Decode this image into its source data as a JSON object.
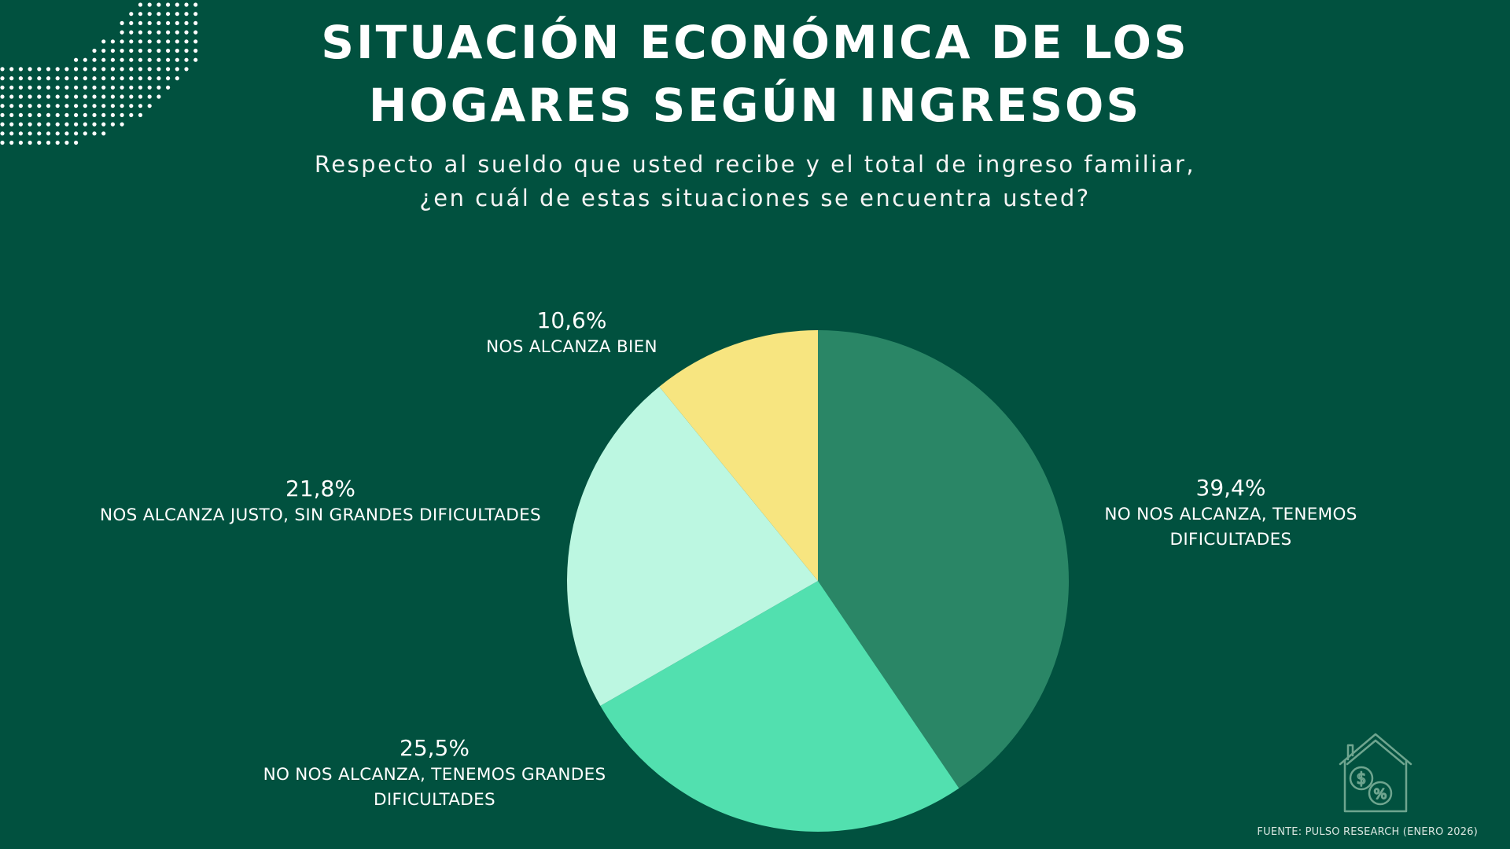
{
  "header": {
    "title_line1": "SITUACIÓN ECONÓMICA DE LOS",
    "title_line2": "HOGARES SEGÚN INGRESOS",
    "subtitle_line1": "Respecto al sueldo que usted recibe y el total de ingreso familiar,",
    "subtitle_line2": "¿en cuál de estas situaciones se encuentra usted?"
  },
  "colors": {
    "background": "#01513f",
    "text": "#ffffff",
    "icon_stroke": "#6fa58f"
  },
  "icons": {
    "decoration": "dotted-arc-pattern",
    "house": "house-dollar-percent-icon"
  },
  "footer": {
    "source": "FUENTE: PULSO RESEARCH (ENERO 2026)"
  },
  "chart_data": {
    "type": "pie",
    "title": "SITUACIÓN ECONÓMICA DE LOS HOGARES SEGÚN INGRESOS",
    "subtitle": "Respecto al sueldo que usted recibe y el total de ingreso familiar, ¿en cuál de estas situaciones se encuentra usted?",
    "start_angle": "12 o'clock",
    "direction": "clockwise",
    "legend": "none (direct labels)",
    "slices": [
      {
        "label": "NO NOS ALCANZA, TENEMOS DIFICULTADES",
        "value": 39.4,
        "display": "39,4%",
        "color": "#2a8666"
      },
      {
        "label": "NO NOS ALCANZA, TENEMOS GRANDES DIFICULTADES",
        "value": 25.5,
        "display": "25,5%",
        "color": "#52e0af"
      },
      {
        "label": "NOS ALCANZA JUSTO, SIN GRANDES DIFICULTADES",
        "value": 21.8,
        "display": "21,8%",
        "color": "#bcf7e1"
      },
      {
        "label": "NOS ALCANZA BIEN",
        "value": 10.6,
        "display": "10,6%",
        "color": "#f7e580"
      }
    ],
    "source": "FUENTE: PULSO RESEARCH (ENERO 2026)"
  }
}
